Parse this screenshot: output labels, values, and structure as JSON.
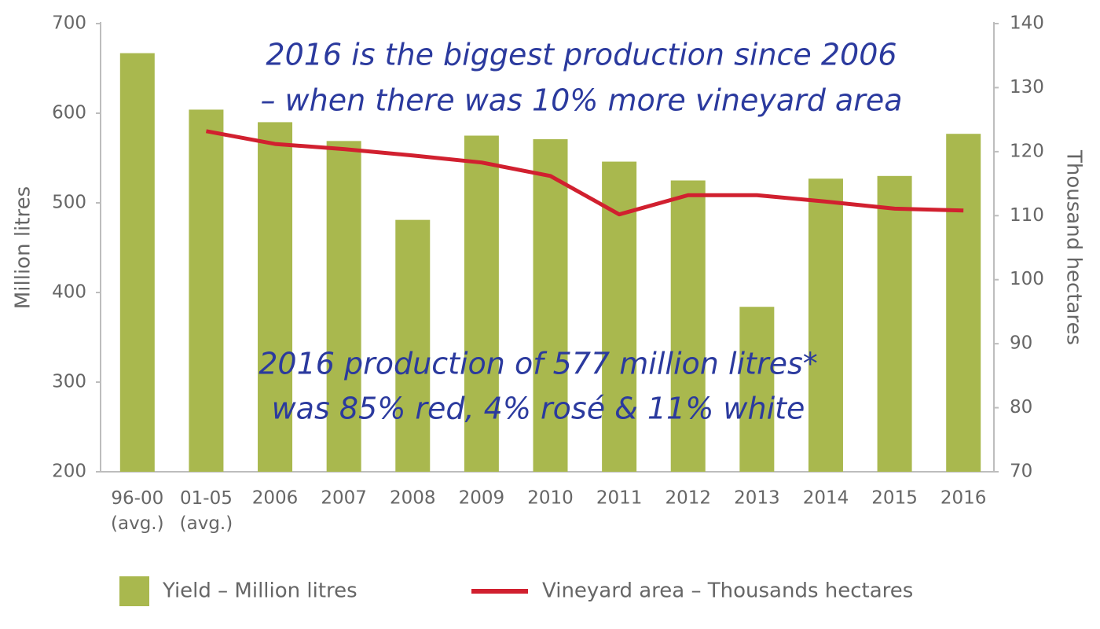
{
  "chart_data": {
    "type": "bar_line",
    "categories": [
      "96-00 (avg.)",
      "01-05 (avg.)",
      "2006",
      "2007",
      "2008",
      "2009",
      "2010",
      "2011",
      "2012",
      "2013",
      "2014",
      "2015",
      "2016"
    ],
    "series": [
      {
        "name": "Yield – Million litres",
        "type": "bar",
        "color": "#a9b84e",
        "axis": "y",
        "values": [
          667,
          604,
          590,
          569,
          481,
          575,
          571,
          546,
          525,
          384,
          527,
          530,
          577
        ]
      },
      {
        "name": "Vineyard area – Thousands hectares",
        "type": "line",
        "color": "#d1202f",
        "axis": "y2",
        "values": [
          null,
          123.2,
          121.2,
          120.4,
          119.4,
          118.3,
          116.2,
          110.2,
          113.2,
          113.2,
          112.2,
          111.1,
          110.8
        ]
      }
    ],
    "ylabel": "Million litres",
    "y2label": "Thousand hectares",
    "ylim": [
      200,
      700
    ],
    "yticks": [
      200,
      300,
      400,
      500,
      600,
      700
    ],
    "y2lim": [
      70,
      140
    ],
    "y2ticks": [
      70,
      80,
      90,
      100,
      110,
      120,
      130,
      140
    ],
    "annotations": [
      [
        "2016 is the biggest production since 2006",
        "– when there was 10% more vineyard area"
      ],
      [
        "2016 production of 577 million litres*",
        "was 85% red, 4% rosé & 11% white"
      ]
    ]
  }
}
